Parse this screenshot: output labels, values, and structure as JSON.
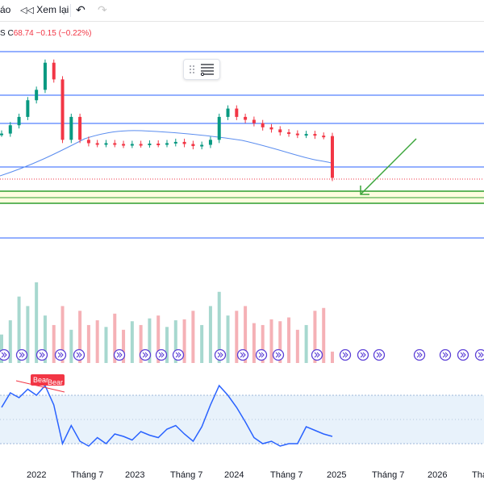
{
  "toolbar": {
    "partial_label": "áo",
    "replay_label": "Xem lại",
    "undo_icon": "undo-icon",
    "redo_icon": "redo-icon"
  },
  "legend": {
    "prefix": "S",
    "close_label": "C",
    "close_value": "68.74",
    "change": "−0.15",
    "change_pct": "(−0.22%)"
  },
  "rsi_badges": [
    "Bear",
    "Bear"
  ],
  "time_axis": [
    "2022",
    "Tháng 7",
    "2023",
    "Tháng 7",
    "2024",
    "Tháng 7",
    "2025",
    "Tháng 7",
    "2026",
    "Thá"
  ],
  "colors": {
    "up": "#089981",
    "down": "#f23645",
    "line_blue": "#2962ff",
    "ma": "#5b8def",
    "zone_green": "#2e9e2e",
    "zone_fill": "#fffde0",
    "arrow": "#3aa53a",
    "rsi": "#2962ff",
    "rsi_band": "#e8f2fb"
  },
  "chart_data": {
    "type": "candlestick",
    "x": [
      "2021-10",
      "2021-11",
      "2021-12",
      "2022-01",
      "2022-02",
      "2022-03",
      "2022-04",
      "2022-05",
      "2022-06",
      "2022-07",
      "2022-08",
      "2022-09",
      "2022-10",
      "2022-11",
      "2022-12",
      "2023-01",
      "2023-02",
      "2023-03",
      "2023-04",
      "2023-05",
      "2023-06",
      "2023-07",
      "2023-08",
      "2023-09",
      "2023-10",
      "2023-11",
      "2023-12",
      "2024-01",
      "2024-02",
      "2024-03",
      "2024-04",
      "2024-05",
      "2024-06",
      "2024-07",
      "2024-08",
      "2024-09",
      "2024-10",
      "2024-11",
      "2024-12"
    ],
    "price_close": [
      175,
      195,
      215,
      255,
      280,
      345,
      305,
      160,
      215,
      160,
      152,
      150,
      152,
      150,
      148,
      150,
      149,
      151,
      150,
      152,
      155,
      150,
      145,
      148,
      160,
      215,
      235,
      215,
      208,
      200,
      190,
      185,
      178,
      175,
      172,
      174,
      170,
      169,
      68.74
    ],
    "volume": [
      30,
      45,
      70,
      60,
      85,
      50,
      40,
      60,
      35,
      55,
      40,
      45,
      38,
      52,
      35,
      44,
      40,
      47,
      50,
      38,
      45,
      46,
      55,
      40,
      60,
      75,
      50,
      55,
      60,
      42,
      40,
      46,
      44,
      48,
      35,
      40,
      55,
      58,
      12
    ],
    "rsi": [
      60,
      72,
      68,
      75,
      70,
      78,
      62,
      30,
      45,
      32,
      28,
      35,
      30,
      38,
      36,
      33,
      40,
      37,
      35,
      42,
      45,
      38,
      32,
      44,
      62,
      78,
      70,
      60,
      48,
      35,
      30,
      32,
      28,
      30,
      30,
      44,
      41,
      38,
      36
    ],
    "horizontal_levels": 6,
    "support_zone": true
  }
}
